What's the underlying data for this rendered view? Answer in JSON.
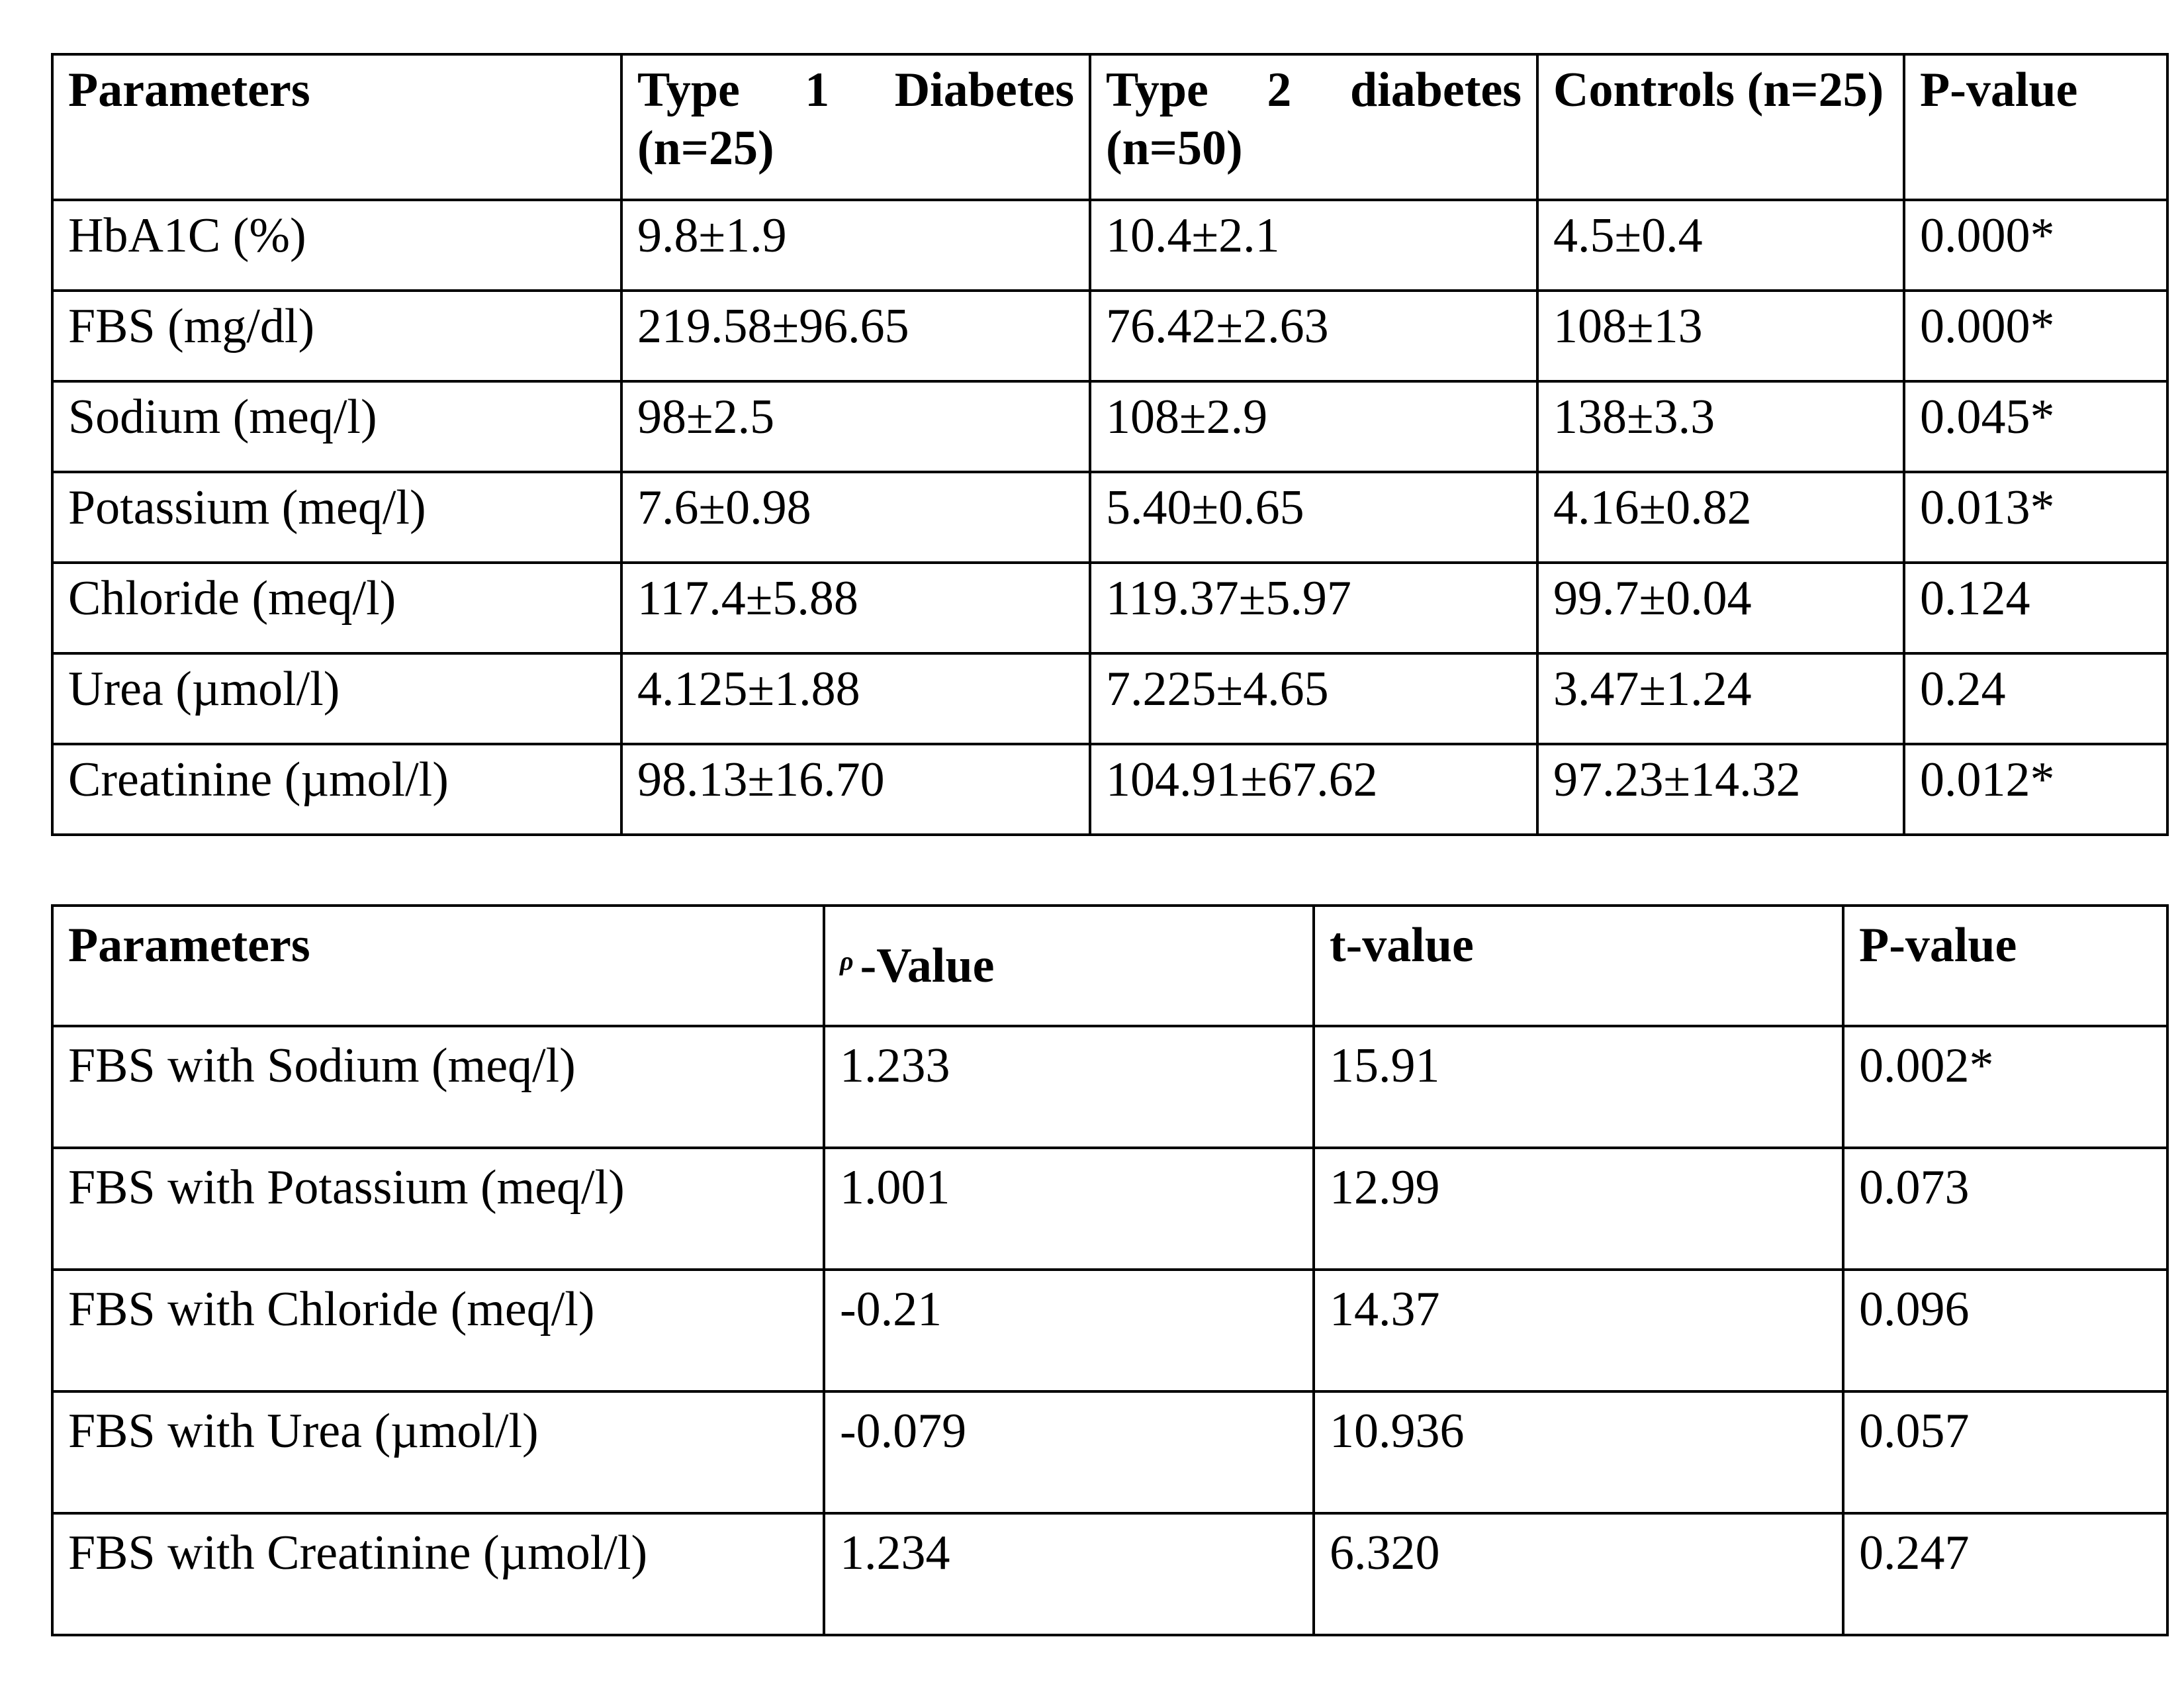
{
  "table1": {
    "headers": [
      "Parameters",
      "Type 1 Diabetes (n=25)",
      "Type 2 diabetes (n=50)",
      "Controls (n=25)",
      "P-value"
    ],
    "rows": [
      [
        "HbA1C (%)",
        "9.8±1.9",
        "10.4±2.1",
        "4.5±0.4",
        "0.000*"
      ],
      [
        "FBS (mg/dl)",
        "219.58±96.65",
        "76.42±2.63",
        "108±13",
        "0.000*"
      ],
      [
        "Sodium (meq/l)",
        "98±2.5",
        "108±2.9",
        "138±3.3",
        "0.045*"
      ],
      [
        "Potassium (meq/l)",
        "7.6±0.98",
        "5.40±0.65",
        "4.16±0.82",
        "0.013*"
      ],
      [
        "Chloride (meq/l)",
        "117.4±5.88",
        "119.37±5.97",
        "99.7±0.04",
        "0.124"
      ],
      [
        "Urea (µmol/l)",
        "4.125±1.88",
        "7.225±4.65",
        "3.47±1.24",
        "0.24"
      ],
      [
        "Creatinine (µmol/l)",
        "98.13±16.70",
        "104.91±67.62",
        "97.23±14.32",
        "0.012*"
      ]
    ]
  },
  "table2": {
    "headers": {
      "parameters": "Parameters",
      "rho_symbol": "ρ",
      "rho_value": "-Value",
      "t_value": "t-value",
      "p_value": "P-value"
    },
    "rows": [
      [
        "FBS with Sodium (meq/l)",
        "1.233",
        "15.91",
        "0.002*"
      ],
      [
        "FBS with Potassium (meq/l)",
        "1.001",
        "12.99",
        "0.073"
      ],
      [
        "FBS with Chloride (meq/l)",
        "-0.21",
        "14.37",
        "0.096"
      ],
      [
        "FBS with Urea (µmol/l)",
        "-0.079",
        "10.936",
        "0.057"
      ],
      [
        "FBS with Creatinine (µmol/l)",
        "1.234",
        "6.320",
        "0.247"
      ]
    ]
  }
}
